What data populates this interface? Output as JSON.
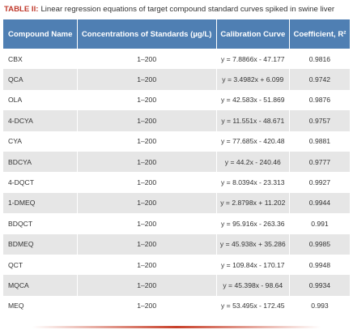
{
  "title": {
    "label": "TABLE II:",
    "text": "Linear regression equations of target compound standard curves spiked in swine liver"
  },
  "table": {
    "headers": [
      "Compound Name",
      "Concentrations of Standards (µg/L)",
      "Calibration Curve",
      "Coefficient, R²"
    ],
    "rows": [
      [
        "CBX",
        "1–200",
        "y = 7.8866x - 47.177",
        "0.9816"
      ],
      [
        "QCA",
        "1–200",
        "y = 3.4982x + 6.099",
        "0.9742"
      ],
      [
        "OLA",
        "1–200",
        "y = 42.583x - 51.869",
        "0.9876"
      ],
      [
        "4-DCYA",
        "1–200",
        "y = 11.551x - 48.671",
        "0.9757"
      ],
      [
        "CYA",
        "1–200",
        "y = 77.685x - 420.48",
        "0.9881"
      ],
      [
        "BDCYA",
        "1–200",
        "y = 44.2x - 240.46",
        "0.9777"
      ],
      [
        "4-DQCT",
        "1–200",
        "y = 8.0394x - 23.313",
        "0.9927"
      ],
      [
        "1-DMEQ",
        "1–200",
        "y = 2.8798x + 11.202",
        "0.9944"
      ],
      [
        "BDQCT",
        "1–200",
        "y = 95.916x - 263.36",
        "0.991"
      ],
      [
        "BDMEQ",
        "1–200",
        "y = 45.938x + 35.286",
        "0.9985"
      ],
      [
        "QCT",
        "1–200",
        "y = 109.84x - 170.17",
        "0.9948"
      ],
      [
        "MQCA",
        "1–200",
        "y = 45.398x - 98.64",
        "0.9934"
      ],
      [
        "MEQ",
        "1–200",
        "y = 53.495x - 172.45",
        "0.993"
      ]
    ]
  }
}
